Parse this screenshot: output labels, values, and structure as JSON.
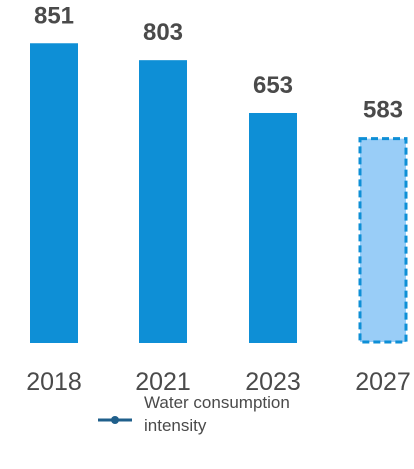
{
  "chart_data": {
    "type": "bar",
    "categories": [
      "2018",
      "2021",
      "2023",
      "2027"
    ],
    "values": [
      851,
      803,
      653,
      583
    ],
    "data_labels": [
      "851",
      "803",
      "653",
      "583"
    ],
    "projected": [
      false,
      false,
      false,
      true
    ],
    "ylim": [
      0,
      900
    ],
    "grid": false,
    "legend_position": "bottom-center",
    "legend": [
      {
        "label_line1": "Water consumption",
        "label_line2": "intensity",
        "marker": "line-with-dot",
        "color": "#1f5f8b"
      }
    ],
    "colors": {
      "bar": "#0e8fd6",
      "projected_fill": "#99cdf7",
      "projected_border": "#0e8fd6",
      "text": "#4a4a4a",
      "legend_line": "#1f5f8b"
    }
  }
}
